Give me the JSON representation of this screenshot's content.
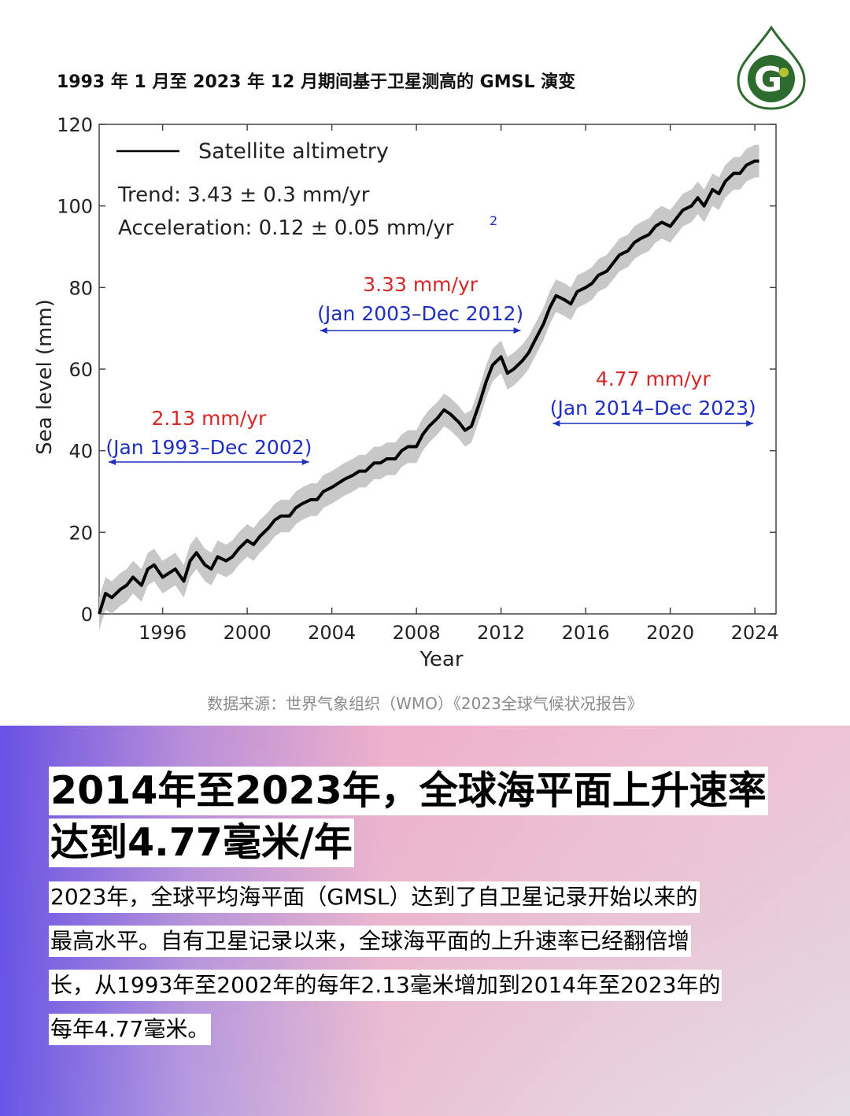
{
  "header": {
    "title": "1993 年 1 月至 2023 年 12 月期间基于卫星测高的 GMSL 演变",
    "logo_letter": "G"
  },
  "chart_data": {
    "type": "line",
    "xlabel": "Year",
    "ylabel": "Sea level (mm)",
    "xlim": [
      1993,
      2025
    ],
    "ylim": [
      0,
      120
    ],
    "x_ticks": [
      "1996",
      "2000",
      "2004",
      "2008",
      "2012",
      "2016",
      "2020",
      "2024"
    ],
    "y_ticks": [
      "0",
      "20",
      "40",
      "60",
      "80",
      "100",
      "120"
    ],
    "grid": false,
    "legend": {
      "label": "Satellite altimetry",
      "position": "top-left"
    },
    "stats": {
      "trend": "Trend: 3.43 ± 0.3 mm/yr",
      "acceleration": "Acceleration: 0.12 ± 0.05 mm/yr",
      "acceleration_sup": "2"
    },
    "series": [
      {
        "name": "Satellite altimetry",
        "color": "#000000",
        "band_color": "#c8c8c8",
        "band_halfwidth": 4,
        "x": [
          1993.0,
          1993.3,
          1993.6,
          1994.0,
          1994.3,
          1994.6,
          1995.0,
          1995.3,
          1995.6,
          1996.0,
          1996.3,
          1996.6,
          1997.0,
          1997.3,
          1997.6,
          1998.0,
          1998.3,
          1998.6,
          1999.0,
          1999.3,
          1999.6,
          2000.0,
          2000.3,
          2000.6,
          2001.0,
          2001.3,
          2001.6,
          2002.0,
          2002.3,
          2002.6,
          2003.0,
          2003.3,
          2003.6,
          2004.0,
          2004.3,
          2004.6,
          2005.0,
          2005.3,
          2005.6,
          2006.0,
          2006.3,
          2006.6,
          2007.0,
          2007.3,
          2007.6,
          2008.0,
          2008.3,
          2008.6,
          2009.0,
          2009.3,
          2009.6,
          2010.0,
          2010.3,
          2010.6,
          2011.0,
          2011.3,
          2011.6,
          2012.0,
          2012.3,
          2012.6,
          2013.0,
          2013.3,
          2013.6,
          2014.0,
          2014.3,
          2014.6,
          2015.0,
          2015.3,
          2015.6,
          2016.0,
          2016.3,
          2016.6,
          2017.0,
          2017.3,
          2017.6,
          2018.0,
          2018.3,
          2018.6,
          2019.0,
          2019.3,
          2019.6,
          2020.0,
          2020.3,
          2020.6,
          2021.0,
          2021.3,
          2021.6,
          2022.0,
          2022.3,
          2022.6,
          2023.0,
          2023.3,
          2023.6,
          2024.0,
          2024.2
        ],
        "y": [
          0,
          5,
          4,
          6,
          7,
          9,
          7,
          11,
          12,
          9,
          10,
          11,
          8,
          13,
          15,
          12,
          11,
          14,
          13,
          14,
          16,
          18,
          17,
          19,
          21,
          23,
          24,
          24,
          26,
          27,
          28,
          28,
          30,
          31,
          32,
          33,
          34,
          35,
          35,
          37,
          37,
          38,
          38,
          40,
          41,
          41,
          44,
          46,
          48,
          50,
          49,
          47,
          45,
          46,
          52,
          57,
          61,
          63,
          59,
          60,
          62,
          64,
          67,
          71,
          75,
          78,
          77,
          76,
          79,
          80,
          81,
          83,
          84,
          86,
          88,
          89,
          91,
          92,
          93,
          95,
          96,
          95,
          97,
          99,
          100,
          102,
          100,
          104,
          103,
          106,
          108,
          108,
          110,
          111,
          111
        ]
      }
    ],
    "annotations": [
      {
        "rate": "2.13 mm/yr",
        "period": "(Jan 1993–Dec 2002)",
        "x_start": 1993,
        "x_end": 2003,
        "color_rate": "#d62728",
        "color_period": "#1f2fbf"
      },
      {
        "rate": "3.33 mm/yr",
        "period": "(Jan 2003–Dec 2012)",
        "x_start": 2003,
        "x_end": 2013,
        "color_rate": "#d62728",
        "color_period": "#1f2fbf"
      },
      {
        "rate": "4.77 mm/yr",
        "period": "(Jan 2014–Dec 2023)",
        "x_start": 2014,
        "x_end": 2024,
        "color_rate": "#d62728",
        "color_period": "#1f2fbf"
      }
    ]
  },
  "source": "数据来源：世界气象组织（WMO）《2023全球气候状况报告》",
  "headline": {
    "line1": "2014年至2023年，全球海平面上升速率",
    "line2": "达到4.77毫米/年"
  },
  "body": {
    "lines": [
      "2023年，全球平均海平面（GMSL）达到了自卫星记录开始以来的",
      "最高水平。自有卫星记录以来，全球海平面的上升速率已经翻倍增",
      "长，从1993年至2002年的每年2.13毫米增加到2014年至2023年的",
      "每年4.77毫米。"
    ]
  },
  "colors": {
    "logo_green": "#2e6b2e",
    "logo_yellow": "#b5c233",
    "rate_red": "#d62728",
    "period_blue": "#1f2fbf"
  }
}
